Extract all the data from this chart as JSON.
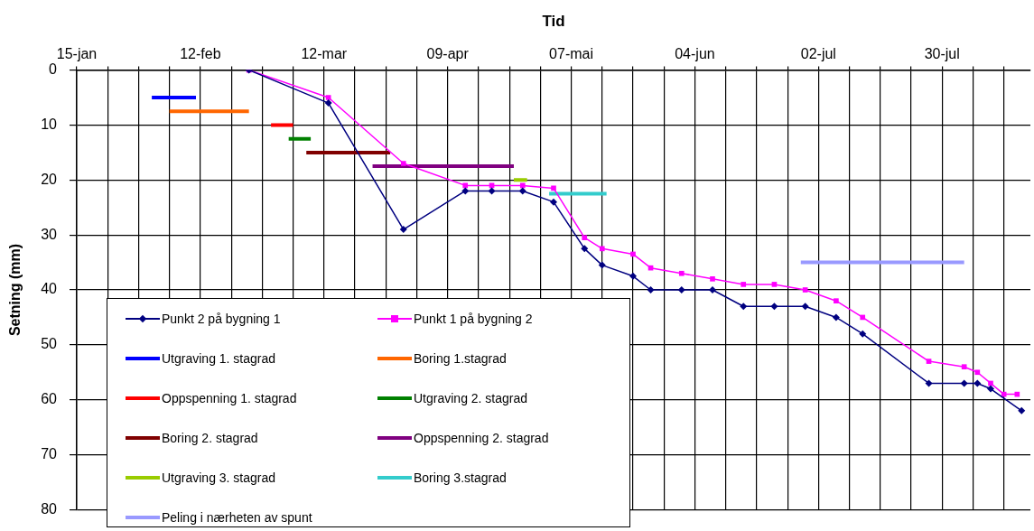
{
  "chart_data": {
    "type": "line",
    "xlabel": "Tid",
    "ylabel": "Setning (mm)",
    "xlim": [
      "--01-15",
      "--08-19"
    ],
    "xticks": [
      {
        "value": "--01-15",
        "label": "15-jan"
      },
      {
        "value": "--01-22",
        "label": null
      },
      {
        "value": "--01-29",
        "label": null
      },
      {
        "value": "--02-05",
        "label": null
      },
      {
        "value": "--02-12",
        "label": "12-feb"
      },
      {
        "value": "--02-19",
        "label": null
      },
      {
        "value": "--02-26",
        "label": null
      },
      {
        "value": "--03-05",
        "label": null
      },
      {
        "value": "--03-12",
        "label": "12-mar"
      },
      {
        "value": "--03-19",
        "label": null
      },
      {
        "value": "--03-26",
        "label": null
      },
      {
        "value": "--04-02",
        "label": null
      },
      {
        "value": "--04-09",
        "label": "09-apr"
      },
      {
        "value": "--04-16",
        "label": null
      },
      {
        "value": "--04-23",
        "label": null
      },
      {
        "value": "--04-30",
        "label": null
      },
      {
        "value": "--05-07",
        "label": "07-mai"
      },
      {
        "value": "--05-14",
        "label": null
      },
      {
        "value": "--05-21",
        "label": null
      },
      {
        "value": "--05-28",
        "label": null
      },
      {
        "value": "--06-04",
        "label": "04-jun"
      },
      {
        "value": "--06-11",
        "label": null
      },
      {
        "value": "--06-18",
        "label": null
      },
      {
        "value": "--06-25",
        "label": null
      },
      {
        "value": "--07-02",
        "label": "02-jul"
      },
      {
        "value": "--07-09",
        "label": null
      },
      {
        "value": "--07-16",
        "label": null
      },
      {
        "value": "--07-23",
        "label": null
      },
      {
        "value": "--07-30",
        "label": "30-jul"
      },
      {
        "value": "--08-06",
        "label": null
      },
      {
        "value": "--08-13",
        "label": null
      }
    ],
    "ylim": [
      80,
      0
    ],
    "yticks": [
      0,
      10,
      20,
      30,
      40,
      50,
      60,
      70,
      80
    ],
    "grid": true,
    "legend": "bottom left",
    "series": [
      {
        "name": "Punkt 2 på bygning 1",
        "color": "#000080",
        "marker": "diamond",
        "x": [
          "--02-23",
          "--03-13",
          "--03-30",
          "--04-13",
          "--04-19",
          "--04-26",
          "--05-03",
          "--05-10",
          "--05-14",
          "--05-21",
          "--05-25",
          "--06-01",
          "--06-08",
          "--06-15",
          "--06-22",
          "--06-29",
          "--07-06",
          "--07-12",
          "--07-27",
          "--08-04",
          "--08-07",
          "--08-10",
          "--08-17"
        ],
        "values": [
          0,
          6,
          29,
          22,
          22,
          22,
          24,
          32.5,
          35.5,
          37.5,
          40,
          40,
          40,
          43,
          43,
          43,
          45,
          48,
          57,
          57,
          57,
          58,
          62
        ]
      },
      {
        "name": "Punkt 1 på bygning 2",
        "color": "#ff00ff",
        "marker": "square",
        "x": [
          "--02-23",
          "--03-13",
          "--03-30",
          "--04-13",
          "--04-19",
          "--04-26",
          "--05-03",
          "--05-10",
          "--05-14",
          "--05-21",
          "--05-25",
          "--06-01",
          "--06-08",
          "--06-15",
          "--06-22",
          "--06-29",
          "--07-06",
          "--07-12",
          "--07-27",
          "--08-04",
          "--08-07",
          "--08-10",
          "--08-13",
          "--08-16"
        ],
        "values": [
          0,
          5,
          17,
          21,
          21,
          21,
          21.5,
          30.5,
          32.5,
          33.5,
          36,
          37,
          38,
          39,
          39,
          40,
          42,
          45,
          53,
          54,
          55,
          57,
          59,
          59
        ]
      },
      {
        "name": "Utgraving 1. stagrad",
        "color": "#0000ff",
        "marker": "none",
        "x": [
          "--02-01",
          "--02-11"
        ],
        "values": [
          5,
          5
        ]
      },
      {
        "name": "Boring 1.stagrad",
        "color": "#ff6600",
        "marker": "none",
        "x": [
          "--02-05",
          "--02-23"
        ],
        "values": [
          7.5,
          7.5
        ]
      },
      {
        "name": "Oppspenning 1. stagrad",
        "color": "#ff0000",
        "marker": "none",
        "x": [
          "--02-28",
          "--03-05"
        ],
        "values": [
          10,
          10
        ]
      },
      {
        "name": "Utgraving 2. stagrad",
        "color": "#008000",
        "marker": "none",
        "x": [
          "--03-04",
          "--03-09"
        ],
        "values": [
          12.5,
          12.5
        ]
      },
      {
        "name": "Boring 2. stagrad",
        "color": "#800000",
        "marker": "none",
        "x": [
          "--03-08",
          "--03-27"
        ],
        "values": [
          15,
          15
        ]
      },
      {
        "name": "Oppspenning 2. stagrad",
        "color": "#800080",
        "marker": "none",
        "x": [
          "--03-23",
          "--04-24"
        ],
        "values": [
          17.5,
          17.5
        ]
      },
      {
        "name": "Utgraving 3. stagrad",
        "color": "#99cc00",
        "marker": "none",
        "x": [
          "--04-24",
          "--04-27"
        ],
        "values": [
          20,
          20
        ]
      },
      {
        "name": "Boring 3.stagrad",
        "color": "#33cccc",
        "marker": "none",
        "x": [
          "--05-02",
          "--05-15"
        ],
        "values": [
          22.5,
          22.5
        ]
      },
      {
        "name": "Peling i nærheten av spunt",
        "color": "#9999ff",
        "marker": "none",
        "x": [
          "--06-28",
          "--08-04"
        ],
        "values": [
          35,
          35
        ]
      }
    ]
  }
}
